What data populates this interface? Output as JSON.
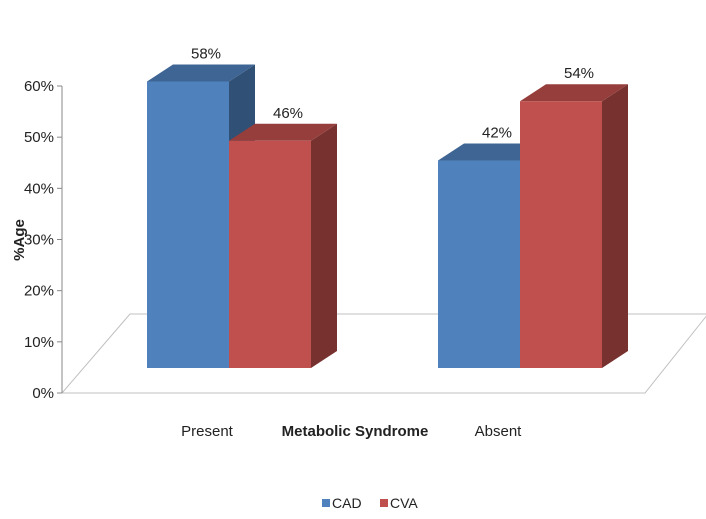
{
  "chart_data": {
    "type": "bar",
    "style": "3d-clustered",
    "title": "",
    "xlabel": "Metabolic Syndrome",
    "ylabel": "%Age",
    "categories": [
      "Present",
      "Absent"
    ],
    "series": [
      {
        "name": "CAD",
        "values": [
          58,
          42
        ],
        "color": "#4f81bd",
        "labels": [
          "58%",
          "42%"
        ]
      },
      {
        "name": "CVA",
        "values": [
          46,
          54
        ],
        "color": "#c0504d",
        "labels": [
          "46%",
          "54%"
        ]
      }
    ],
    "ylim": [
      0,
      60
    ],
    "yticks": [
      0,
      10,
      20,
      30,
      40,
      50,
      60
    ],
    "ytick_labels": [
      "0%",
      "10%",
      "20%",
      "30%",
      "40%",
      "50%",
      "60%"
    ],
    "grid": false,
    "legend_position": "bottom"
  }
}
